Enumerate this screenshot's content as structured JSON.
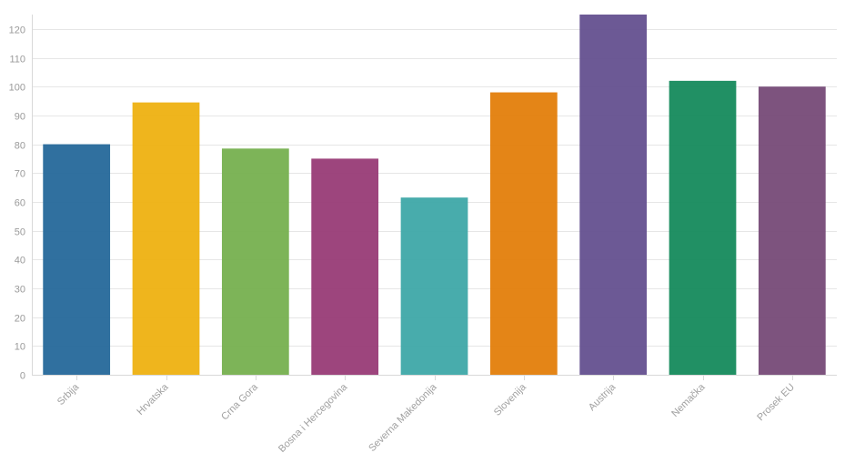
{
  "chart_data": {
    "type": "bar",
    "title": "",
    "xlabel": "",
    "ylabel": "",
    "ylim": [
      0,
      125
    ],
    "yticks": [
      0,
      10,
      20,
      30,
      40,
      50,
      60,
      70,
      80,
      90,
      100,
      110,
      120
    ],
    "grid": true,
    "legend": "none",
    "categories": [
      "Srbija",
      "Hrvatska",
      "Crna Gora",
      "Bosna i Hercegovina",
      "Severna Makedonija",
      "Slovenija",
      "Austrija",
      "Nemačka",
      "Prosek EU"
    ],
    "values": [
      80,
      94.5,
      78.5,
      75,
      61.5,
      98,
      125,
      102,
      100
    ],
    "colors": [
      "#25689a",
      "#eeb111",
      "#76b04f",
      "#983b76",
      "#3ea8a8",
      "#e37e0b",
      "#64508f",
      "#158a5c",
      "#764a77"
    ]
  }
}
